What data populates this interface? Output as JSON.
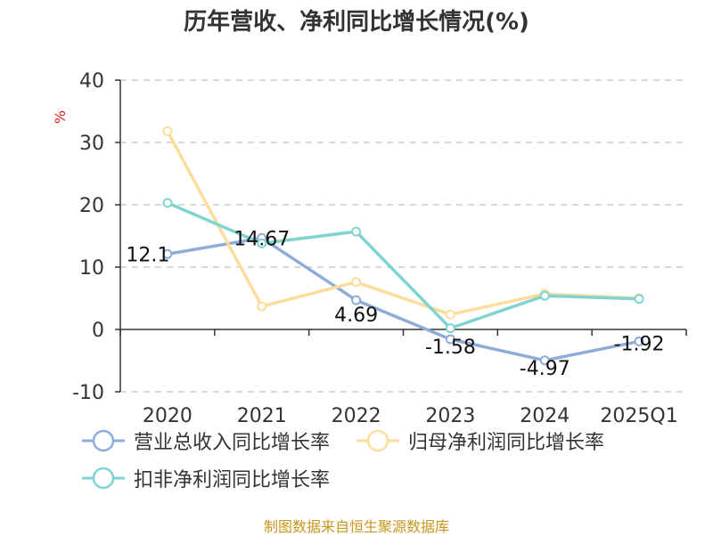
{
  "title": "历年营收、净利同比增长情况(%)",
  "unit_label": "%",
  "source": "制图数据来自恒生聚源数据库",
  "colors": {
    "revenue": "#8eacd8",
    "net_profit": "#fddc9c",
    "deducted_profit": "#80d4d0",
    "grid": "#cccccc",
    "axis": "#333333"
  },
  "chart_data": {
    "type": "line",
    "title": "历年营收、净利同比增长情况(%)",
    "ylabel": "%",
    "xlabel": "",
    "categories": [
      "2020",
      "2021",
      "2022",
      "2023",
      "2024",
      "2025Q1"
    ],
    "ylim": [
      -10,
      40
    ],
    "yticks": [
      40,
      30,
      20,
      10,
      0,
      -10
    ],
    "grid": true,
    "legend_position": "bottom",
    "series": [
      {
        "name": "营业总收入同比增长率",
        "color": "#8eacd8",
        "values": [
          12.1,
          14.67,
          4.69,
          -1.58,
          -4.97,
          -1.92
        ],
        "labels": [
          "12.1",
          "14.67",
          "4.69",
          "-1.58",
          "-4.97",
          "-1.92"
        ]
      },
      {
        "name": "归母净利润同比增长率",
        "color": "#fddc9c",
        "values": [
          31.8,
          3.7,
          7.6,
          2.4,
          5.7,
          5.0
        ]
      },
      {
        "name": "扣非净利润同比增长率",
        "color": "#80d4d0",
        "values": [
          20.3,
          13.8,
          15.7,
          0.2,
          5.4,
          4.9
        ]
      }
    ]
  }
}
